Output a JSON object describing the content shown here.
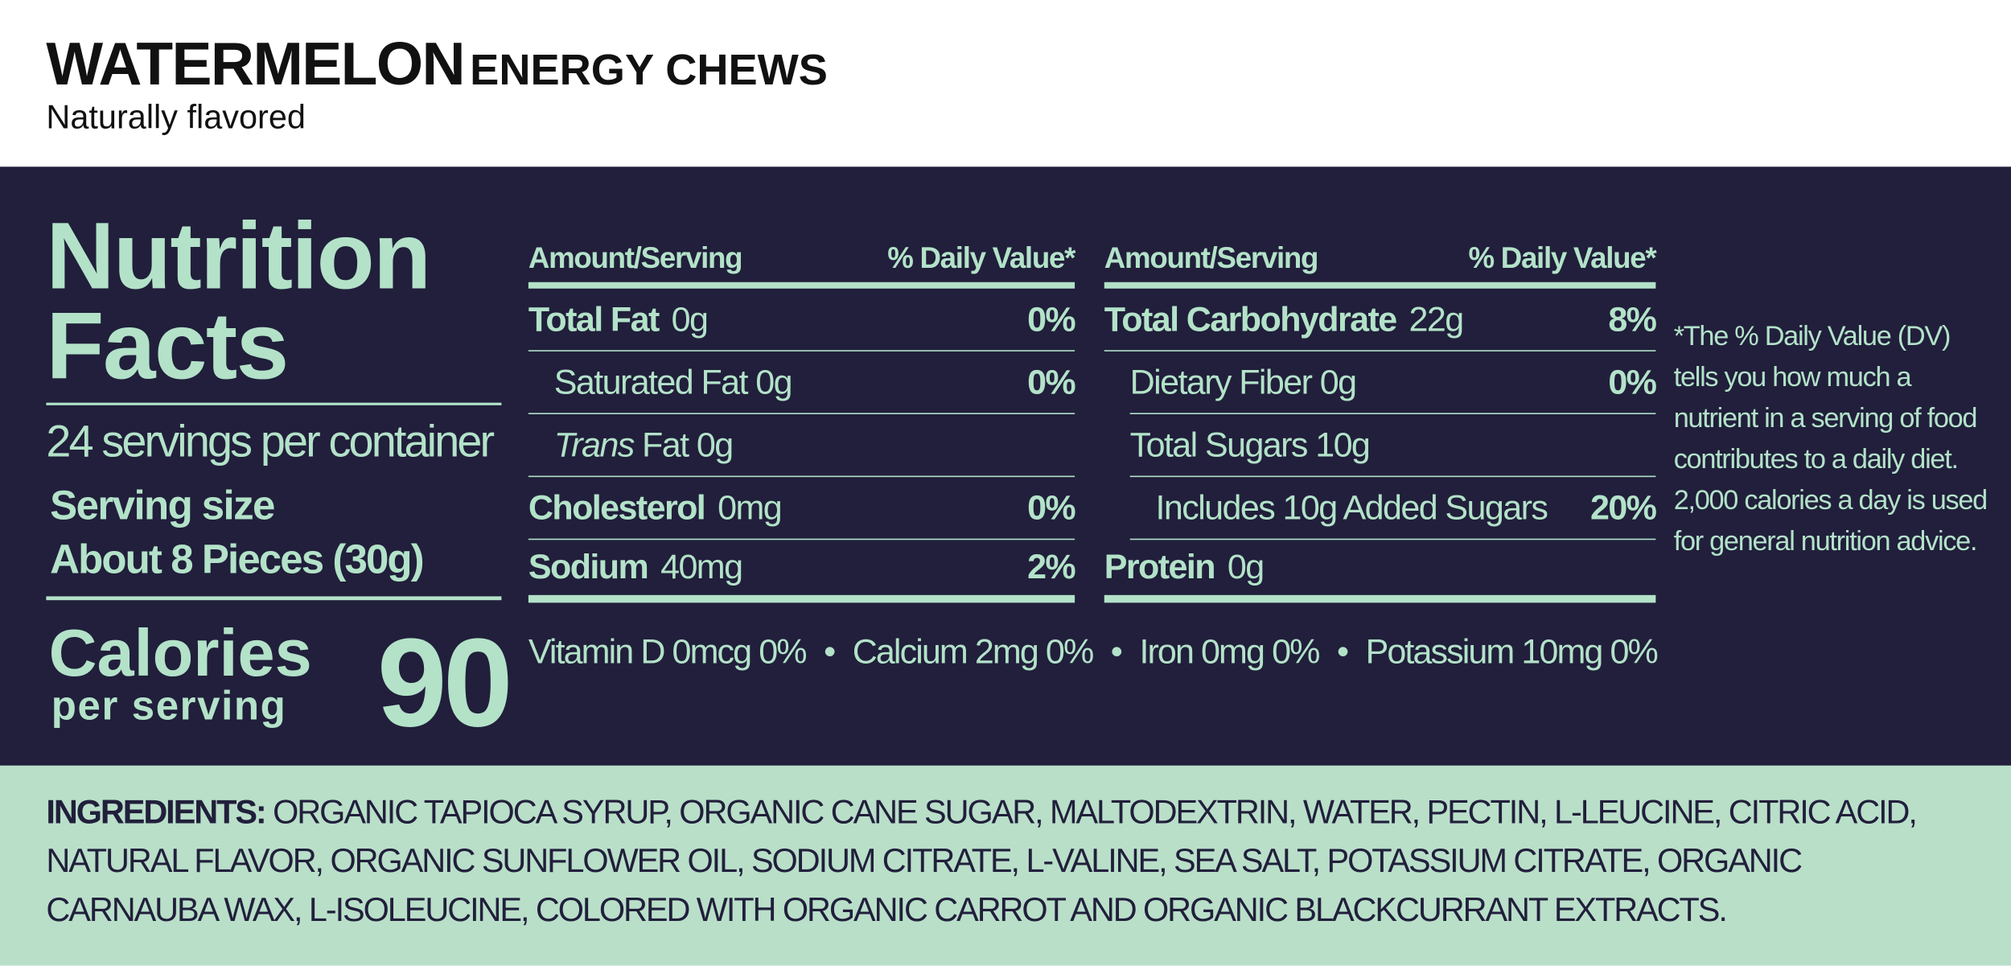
{
  "header": {
    "title": "WATERMELON",
    "title_suffix": "ENERGY CHEWS",
    "tagline": "Naturally flavored"
  },
  "facts": {
    "title_line1": "Nutrition",
    "title_line2": "Facts",
    "servings": "24 servings per container",
    "serving_size_label": "Serving size",
    "serving_size": "About 8 Pieces (30g)",
    "calories_label": "Calories",
    "calories_sub": "per serving",
    "calories": 90
  },
  "columns": [
    {
      "amount_header": "Amount/Serving",
      "dv_header": "% Daily Value*",
      "rows": [
        {
          "name": "Total Fat",
          "amount": "0g",
          "dv": "0%"
        },
        {
          "name": "Saturated Fat",
          "amount": "0g",
          "dv": "0%"
        },
        {
          "name_italic": "Trans",
          "name": "Fat",
          "amount": "0g"
        },
        {
          "name": "Cholesterol",
          "amount": "0mg",
          "dv": "0%"
        },
        {
          "name": "Sodium",
          "amount": "40mg",
          "dv": "2%"
        }
      ]
    },
    {
      "amount_header": "Amount/Serving",
      "dv_header": "% Daily Value*",
      "rows": [
        {
          "name": "Total Carbohydrate",
          "amount": "22g",
          "dv": "8%"
        },
        {
          "name": "Dietary Fiber",
          "amount": "0g",
          "dv": "0%"
        },
        {
          "name": "Total Sugars",
          "amount": "10g"
        },
        {
          "name": "Includes 10g Added Sugars",
          "dv": "20%"
        },
        {
          "name": "Protein",
          "amount": "0g"
        }
      ]
    }
  ],
  "vitamins": [
    "Vitamin D 0mcg 0%",
    "Calcium 2mg 0%",
    "Iron 0mg 0%",
    "Potassium 10mg 0%"
  ],
  "footnote": "*The % Daily Value (DV) tells you how much a nutrient in a serving of food contributes to a daily diet. 2,000 calories a day is used for general nutrition advice.",
  "ingredients": {
    "label": "INGREDIENTS:",
    "text": "ORGANIC TAPIOCA SYRUP, ORGANIC CANE SUGAR, MALTODEXTRIN, WATER, PECTIN, L-LEUCINE, CITRIC ACID, NATURAL FLAVOR, ORGANIC SUNFLOWER OIL, SODIUM CITRATE, L-VALINE, SEA SALT, POTASSIUM CITRATE, ORGANIC CARNAUBA WAX, L-ISOLEUCINE, COLORED WITH ORGANIC CARROT AND ORGANIC BLACKCURRANT EXTRACTS."
  }
}
